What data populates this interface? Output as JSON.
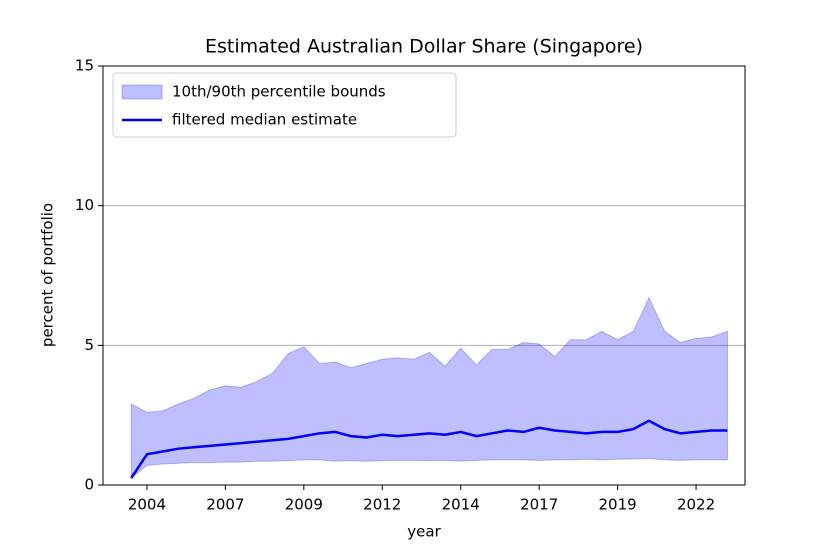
{
  "chart_data": {
    "type": "band-line",
    "title": "Estimated Australian Dollar Share (Singapore)",
    "xlabel": "year",
    "ylabel": "percent of portfolio",
    "x": [
      2003.5,
      2004,
      2004.5,
      2005,
      2005.5,
      2006,
      2006.5,
      2007,
      2007.5,
      2008,
      2008.5,
      2009,
      2009.5,
      2010,
      2010.5,
      2011,
      2011.5,
      2012,
      2012.5,
      2013,
      2013.5,
      2014,
      2014.5,
      2015,
      2015.5,
      2016,
      2016.5,
      2017,
      2017.5,
      2018,
      2018.5,
      2019,
      2019.5,
      2020,
      2020.5,
      2021,
      2021.5,
      2022,
      2022.5
    ],
    "series": [
      {
        "name": "10th/90th percentile bounds",
        "color": "#0000ff",
        "alpha": 0.25,
        "upper": [
          2.9,
          2.6,
          2.65,
          2.9,
          3.1,
          3.4,
          3.55,
          3.5,
          3.7,
          4.0,
          4.7,
          4.95,
          4.35,
          4.4,
          4.2,
          4.35,
          4.5,
          4.55,
          4.5,
          4.75,
          4.25,
          4.9,
          4.3,
          4.85,
          4.85,
          5.1,
          5.05,
          4.6,
          5.2,
          5.2,
          5.5,
          5.2,
          5.5,
          6.7,
          5.5,
          5.1,
          5.25,
          5.3,
          5.5
        ],
        "lower": [
          0.25,
          0.7,
          0.75,
          0.78,
          0.8,
          0.8,
          0.82,
          0.82,
          0.85,
          0.85,
          0.87,
          0.9,
          0.9,
          0.85,
          0.87,
          0.85,
          0.87,
          0.88,
          0.88,
          0.87,
          0.88,
          0.85,
          0.88,
          0.9,
          0.9,
          0.9,
          0.88,
          0.9,
          0.9,
          0.92,
          0.9,
          0.92,
          0.93,
          0.95,
          0.9,
          0.88,
          0.9,
          0.9,
          0.9
        ]
      },
      {
        "name": "filtered median estimate",
        "color": "#0000ff",
        "values": [
          0.25,
          1.1,
          1.2,
          1.3,
          1.35,
          1.4,
          1.45,
          1.5,
          1.55,
          1.6,
          1.65,
          1.75,
          1.85,
          1.9,
          1.75,
          1.7,
          1.8,
          1.75,
          1.8,
          1.85,
          1.8,
          1.9,
          1.75,
          1.85,
          1.95,
          1.9,
          2.05,
          1.95,
          1.9,
          1.85,
          1.9,
          1.9,
          2.0,
          2.3,
          2.0,
          1.85,
          1.9,
          1.95,
          1.95
        ]
      }
    ],
    "xlim": [
      2002.6,
      2023.06
    ],
    "xticks": [
      2004,
      {
        "value": 2006.5,
        "label": "2007"
      },
      2009,
      {
        "value": 2011.5,
        "label": "2012"
      },
      2014,
      {
        "value": 2016.5,
        "label": "2017"
      },
      2019,
      {
        "value": 2021.5,
        "label": "2022"
      }
    ],
    "ylim": [
      0,
      15
    ],
    "yticks": [
      0,
      5,
      10,
      15
    ],
    "grid": true,
    "legend": "upper-left"
  }
}
